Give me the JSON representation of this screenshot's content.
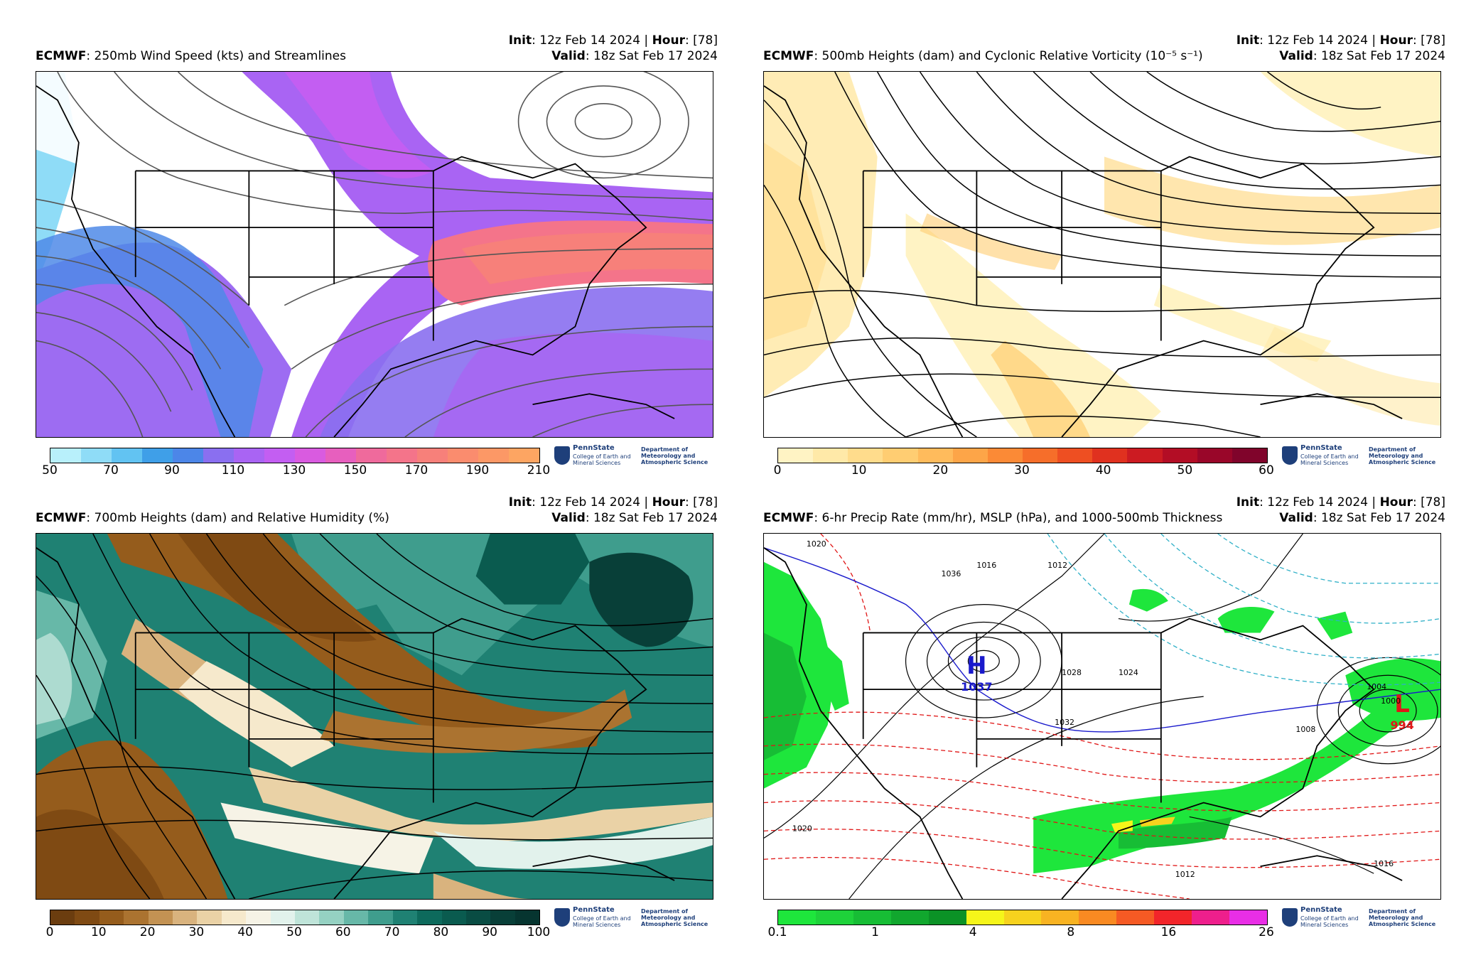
{
  "panels": [
    {
      "init_label": "Init",
      "init_value": ": 12z Feb 14 2024 | ",
      "hour_label": "Hour",
      "hour_value": ": [78]",
      "model": "ECMWF",
      "title": ": 250mb Wind Speed (kts) and Streamlines",
      "valid_label": "Valid",
      "valid_value": ": 18z Sat Feb 17 2024",
      "colorbar": {
        "ticks": [
          "50",
          "70",
          "90",
          "110",
          "130",
          "150",
          "170",
          "190",
          "210"
        ],
        "colors": [
          "#b8f0fb",
          "#8fdcf7",
          "#62c3f2",
          "#3f9fe8",
          "#4c86e8",
          "#8a6ff0",
          "#a964f3",
          "#c35ef2",
          "#d95be0",
          "#e75fbe",
          "#ef6a9c",
          "#f4748a",
          "#f7807a",
          "#fa8c6e",
          "#fc9866",
          "#fda562"
        ]
      },
      "logo": {
        "org": "PennState",
        "college": "College of Earth and Mineral Sciences",
        "dept": "Department of Meteorology and Atmospheric Science"
      }
    },
    {
      "init_label": "Init",
      "init_value": ": 12z Feb 14 2024 | ",
      "hour_label": "Hour",
      "hour_value": ": [78]",
      "model": "ECMWF",
      "title": ": 500mb Heights (dam) and Cyclonic Relative Vorticity (10⁻⁵ s⁻¹)",
      "valid_label": "Valid",
      "valid_value": ": 18z Sat Feb 17 2024",
      "colorbar": {
        "ticks": [
          "0",
          "10",
          "20",
          "30",
          "40",
          "50",
          "60"
        ],
        "colors": [
          "#fff3c4",
          "#ffe9a8",
          "#ffdc8c",
          "#ffcd72",
          "#ffbb5c",
          "#fda548",
          "#fb8a36",
          "#f66e2a",
          "#ee4f22",
          "#e0311f",
          "#cc1b22",
          "#b30d25",
          "#990629",
          "#80042b"
        ]
      },
      "logo": {
        "org": "PennState",
        "college": "College of Earth and Mineral Sciences",
        "dept": "Department of Meteorology and Atmospheric Science"
      }
    },
    {
      "init_label": "Init",
      "init_value": ": 12z Feb 14 2024 | ",
      "hour_label": "Hour",
      "hour_value": ": [78]",
      "model": "ECMWF",
      "title": ": 700mb Heights (dam) and Relative Humidity (%)",
      "valid_label": "Valid",
      "valid_value": ": 18z Sat Feb 17 2024",
      "colorbar": {
        "ticks": [
          "0",
          "10",
          "20",
          "30",
          "40",
          "50",
          "60",
          "70",
          "80",
          "90",
          "100"
        ],
        "colors": [
          "#6b3d0f",
          "#7f4a13",
          "#955c1c",
          "#ab7330",
          "#c39253",
          "#d9b37e",
          "#ead2a6",
          "#f6e9cc",
          "#f6f3e6",
          "#e2f2ec",
          "#bfe4d9",
          "#95d1c2",
          "#67b8a8",
          "#3f9d8d",
          "#1f8173",
          "#0d6a5c",
          "#0a5b4f",
          "#094c43",
          "#083f38",
          "#063530"
        ]
      },
      "logo": {
        "org": "PennState",
        "college": "College of Earth and Mineral Sciences",
        "dept": "Department of Meteorology and Atmospheric Science"
      }
    },
    {
      "init_label": "Init",
      "init_value": ": 12z Feb 14 2024 | ",
      "hour_label": "Hour",
      "hour_value": ": [78]",
      "model": "ECMWF",
      "title": ": 6-hr Precip Rate (mm/hr), MSLP (hPa), and 1000-500mb Thickness",
      "valid_label": "Valid",
      "valid_value": ": 18z Sat Feb 17 2024",
      "colorbar": {
        "ticks": [
          "0.1",
          "1",
          "4",
          "8",
          "16",
          "26"
        ],
        "colors": [
          "#1ee63c",
          "#1ed23a",
          "#17bd35",
          "#11a72e",
          "#0b9226",
          "#f5f51a",
          "#f7d21e",
          "#f8b322",
          "#f98a22",
          "#f55a24",
          "#f2252a",
          "#ee1f8c",
          "#e92ee6"
        ]
      },
      "pressure_centers": [
        {
          "type": "H",
          "value": "1037",
          "color": "#1a1acc"
        },
        {
          "type": "L",
          "value": "994",
          "color": "#e01616"
        }
      ],
      "isobar_labels": [
        "1020",
        "1016",
        "1012",
        "1024",
        "1028",
        "1032",
        "1004",
        "1000",
        "1008",
        "1020",
        "1012",
        "1016",
        "1036"
      ],
      "logo": {
        "org": "PennState",
        "college": "College of Earth and Mineral Sciences",
        "dept": "Department of Meteorology and Atmospheric Science"
      }
    }
  ]
}
